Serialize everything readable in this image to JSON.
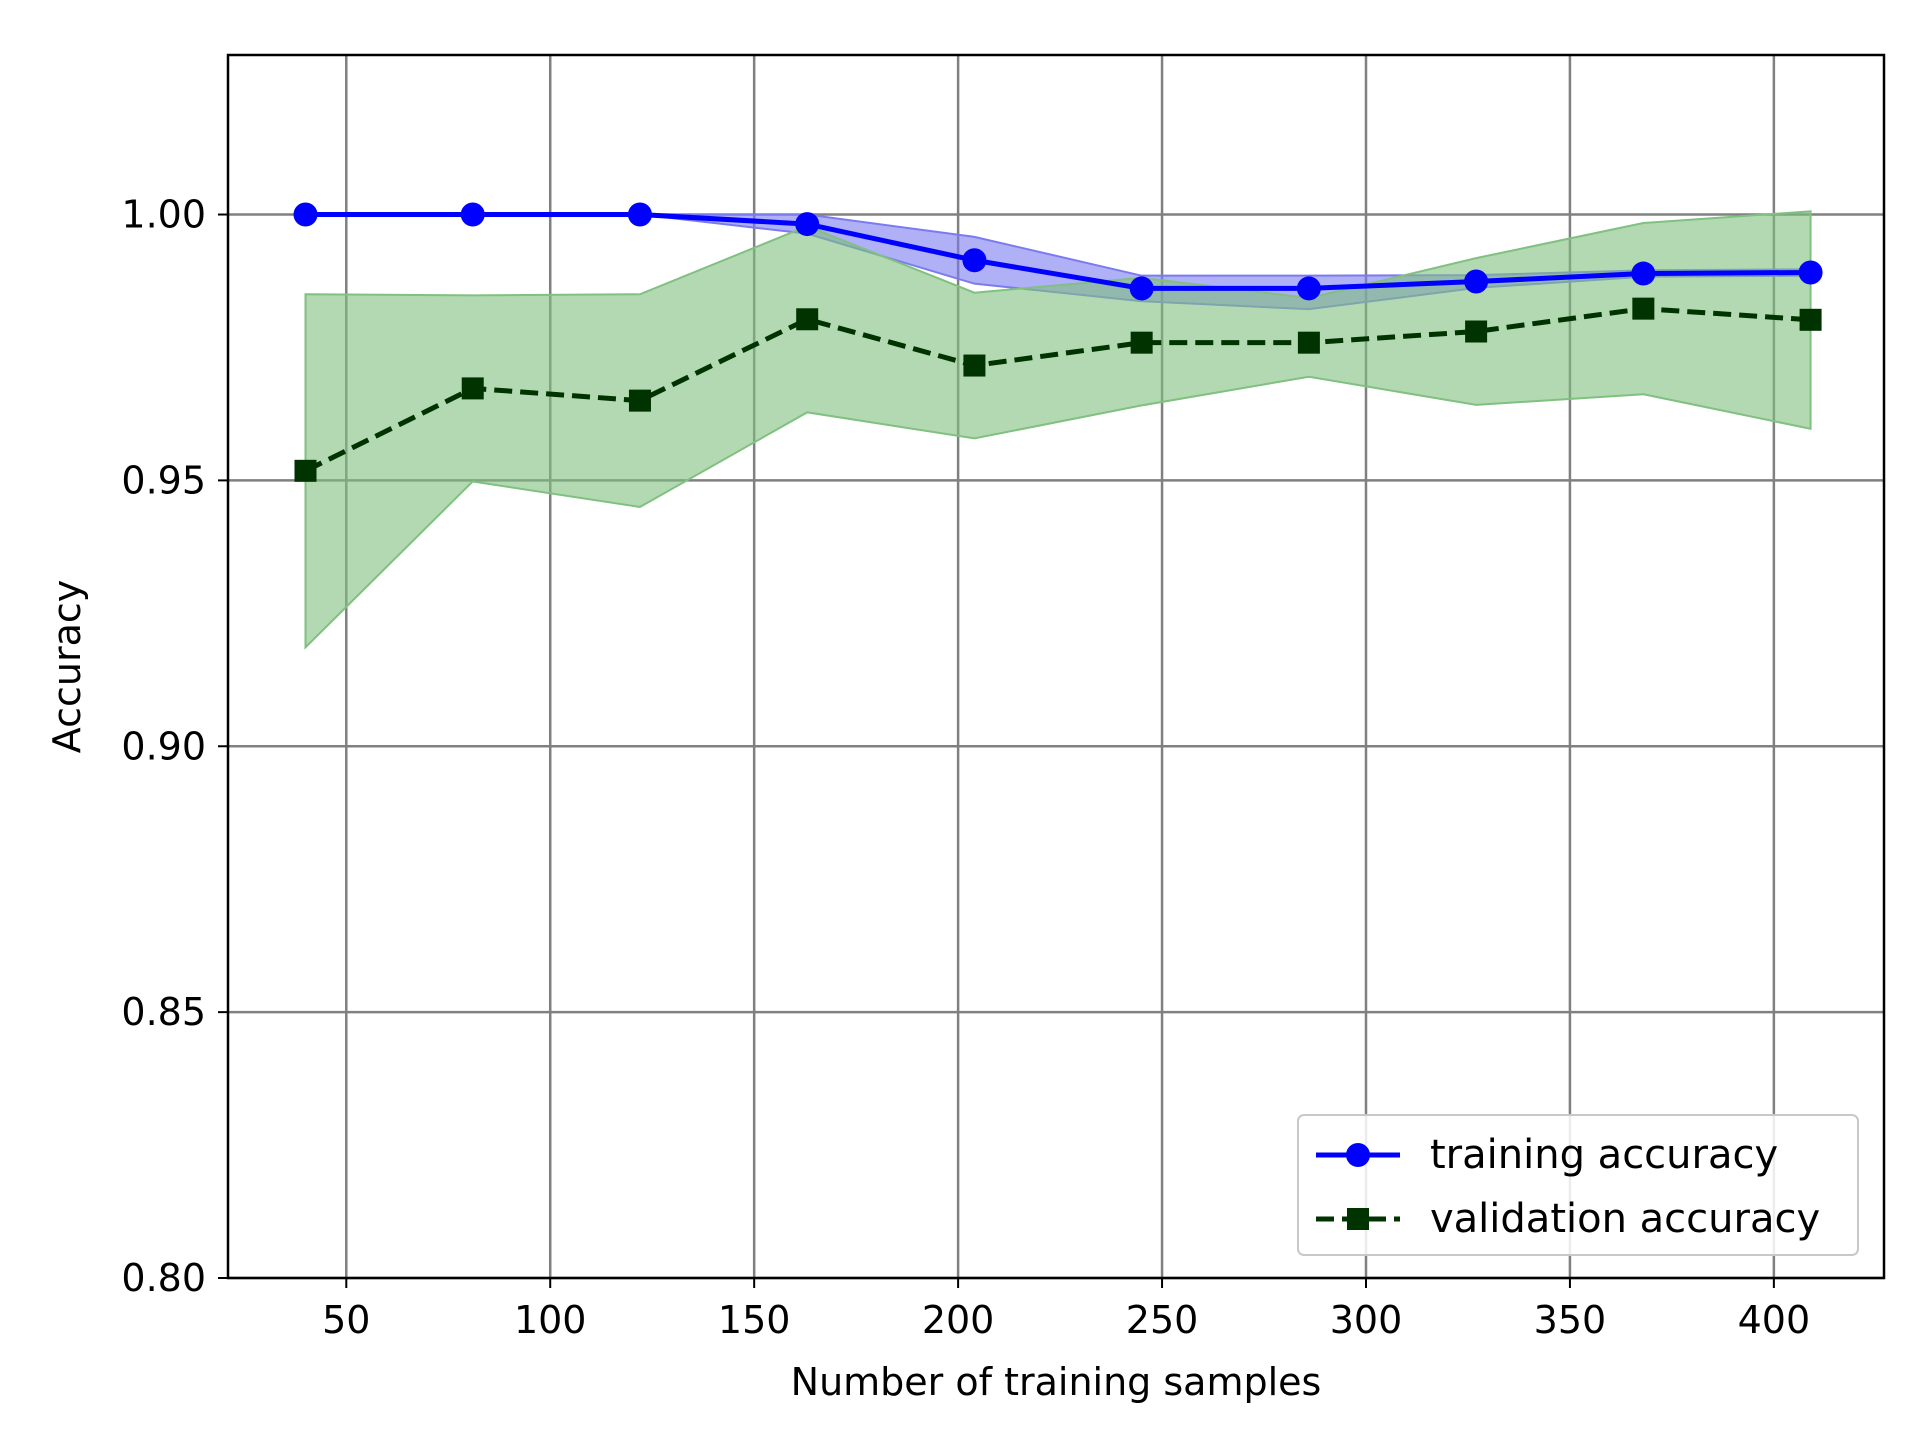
{
  "chart_data": {
    "type": "line",
    "title": "",
    "xlabel": "Number of training samples",
    "ylabel": "Accuracy",
    "xlim": [
      21,
      427
    ],
    "ylim": [
      0.8,
      1.03
    ],
    "xticks": [
      50,
      100,
      150,
      200,
      250,
      300,
      350,
      400
    ],
    "yticks": [
      0.8,
      0.85,
      0.9,
      0.95,
      1.0
    ],
    "xtick_labels": [
      "50",
      "100",
      "150",
      "200",
      "250",
      "300",
      "350",
      "400"
    ],
    "ytick_labels": [
      "0.80",
      "0.85",
      "0.90",
      "0.95",
      "1.00"
    ],
    "grid": true,
    "legend_position": "lower-right",
    "x": [
      40,
      81,
      122,
      163,
      204,
      245,
      286,
      327,
      368,
      409
    ],
    "series": [
      {
        "name": "training accuracy",
        "color": "#0000ff",
        "marker": "circle",
        "linestyle": "solid",
        "values": [
          1.0,
          1.0,
          1.0,
          0.9982,
          0.9914,
          0.9861,
          0.9861,
          0.9874,
          0.9889,
          0.9891
        ],
        "band_upper": [
          1.0,
          1.0,
          1.0,
          1.0,
          0.9958,
          0.9885,
          0.9885,
          0.9886,
          0.9895,
          0.9897
        ],
        "band_lower": [
          1.0,
          1.0,
          1.0,
          0.9964,
          0.987,
          0.9837,
          0.9822,
          0.9862,
          0.9883,
          0.9885
        ],
        "band_color": "#7b7bf0"
      },
      {
        "name": "validation accuracy",
        "color": "#003300",
        "marker": "square",
        "linestyle": "dashed",
        "values": [
          0.9518,
          0.9673,
          0.965,
          0.9803,
          0.9716,
          0.9759,
          0.9759,
          0.978,
          0.9823,
          0.9802
        ],
        "band_upper": [
          0.985,
          0.9848,
          0.985,
          0.9978,
          0.9853,
          0.9881,
          0.9843,
          0.9918,
          0.9984,
          1.0006
        ],
        "band_lower": [
          0.9186,
          0.9498,
          0.945,
          0.9628,
          0.9579,
          0.9641,
          0.9695,
          0.9642,
          0.9662,
          0.9597
        ],
        "band_color": "#80c080"
      }
    ]
  }
}
